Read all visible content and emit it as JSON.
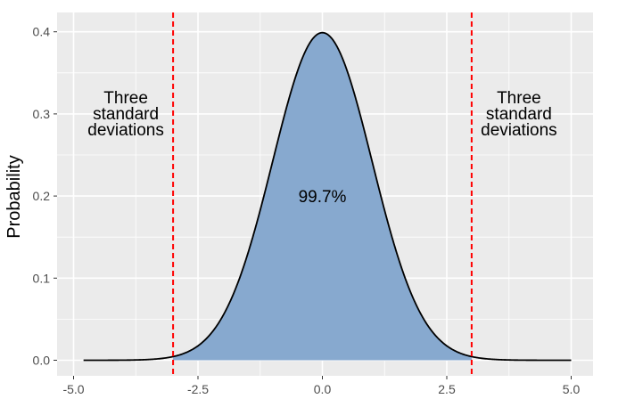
{
  "chart_data": {
    "type": "area",
    "title": "",
    "xlabel": "",
    "ylabel": "Probability",
    "xlim": [
      -5.0,
      5.0
    ],
    "ylim": [
      0.0,
      0.42
    ],
    "x_ticks": [
      -5.0,
      -2.5,
      0.0,
      2.5,
      5.0
    ],
    "x_tick_labels": [
      "-5.0",
      "-2.5",
      "0.0",
      "2.5",
      "5.0"
    ],
    "y_ticks": [
      0.0,
      0.1,
      0.2,
      0.3,
      0.4
    ],
    "y_tick_labels": [
      "0.0",
      "0.1",
      "0.2",
      "0.3",
      "0.4"
    ],
    "grid": true,
    "background_color": "#ebebeb",
    "grid_color": "#ffffff",
    "fill_color": "#87a9cf",
    "line_color": "#000000",
    "distribution": {
      "name": "normal",
      "mean": 0,
      "sd": 1
    },
    "density_points": [
      {
        "x": -4.8,
        "y": 0.0
      },
      {
        "x": -4.0,
        "y": 0.0001
      },
      {
        "x": -3.5,
        "y": 0.0009
      },
      {
        "x": -3.0,
        "y": 0.0044
      },
      {
        "x": -2.5,
        "y": 0.0175
      },
      {
        "x": -2.0,
        "y": 0.054
      },
      {
        "x": -1.5,
        "y": 0.1295
      },
      {
        "x": -1.0,
        "y": 0.242
      },
      {
        "x": -0.5,
        "y": 0.3521
      },
      {
        "x": 0.0,
        "y": 0.3989
      },
      {
        "x": 0.5,
        "y": 0.3521
      },
      {
        "x": 1.0,
        "y": 0.242
      },
      {
        "x": 1.5,
        "y": 0.1295
      },
      {
        "x": 2.0,
        "y": 0.054
      },
      {
        "x": 2.5,
        "y": 0.0175
      },
      {
        "x": 3.0,
        "y": 0.0044
      },
      {
        "x": 3.5,
        "y": 0.0009
      },
      {
        "x": 4.0,
        "y": 0.0001
      },
      {
        "x": 5.0,
        "y": 0.0
      }
    ],
    "shaded_region": [
      -3.0,
      3.0
    ],
    "reference_lines": [
      {
        "x": -3.0,
        "color": "#ff0000",
        "style": "dashed"
      },
      {
        "x": 3.0,
        "color": "#ff0000",
        "style": "dashed"
      }
    ],
    "annotations": {
      "center": {
        "text": "99.7%",
        "x": 0.0,
        "y": 0.2
      },
      "left": {
        "lines": [
          "Three",
          "standard",
          "deviations"
        ],
        "x": -3.95,
        "y": 0.3
      },
      "right": {
        "lines": [
          "Three",
          "standard",
          "deviations"
        ],
        "x": 3.95,
        "y": 0.3
      }
    }
  }
}
